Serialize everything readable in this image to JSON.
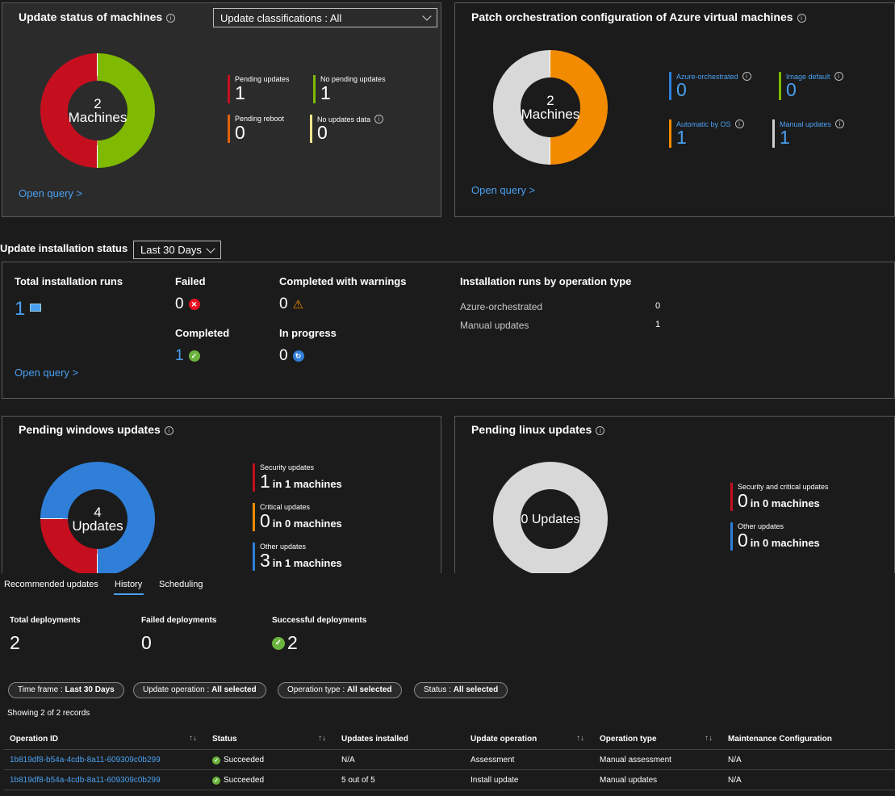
{
  "update_status": {
    "title": "Update status of machines",
    "dropdown": "Update classifications : All",
    "donut_value": "2",
    "donut_unit": "Machines",
    "legend": [
      {
        "label": "Pending updates",
        "value": "1",
        "color": "#c50f1f"
      },
      {
        "label": "No pending updates",
        "value": "1",
        "color": "#7fba00"
      },
      {
        "label": "Pending reboot",
        "value": "0",
        "color": "#e0620d"
      },
      {
        "label": "No updates data",
        "value": "0",
        "color": "#f0e68c"
      }
    ],
    "open_query": "Open query >"
  },
  "patch_orchestration": {
    "title": "Patch orchestration configuration of Azure virtual machines",
    "donut_value": "2",
    "donut_unit": "Machines",
    "legend": [
      {
        "label": "Azure-orchestrated",
        "value": "0",
        "color": "#2f7fd8"
      },
      {
        "label": "Image default",
        "value": "0",
        "color": "#7fba00"
      },
      {
        "label": "Automatic by OS",
        "value": "1",
        "color": "#f28b00"
      },
      {
        "label": "Manual updates",
        "value": "1",
        "color": "#d0d0d0"
      }
    ],
    "open_query": "Open query >"
  },
  "installation": {
    "title": "Update installation status",
    "timeframe": "Last 30 Days",
    "total_runs_label": "Total installation runs",
    "total_runs_value": "1",
    "failed_label": "Failed",
    "failed_value": "0",
    "completed_label": "Completed",
    "completed_value": "1",
    "warnings_label": "Completed with warnings",
    "warnings_value": "0",
    "in_progress_label": "In progress",
    "in_progress_value": "0",
    "by_type_title": "Installation runs by operation type",
    "by_type": [
      {
        "label": "Azure-orchestrated",
        "value": "0"
      },
      {
        "label": "Manual updates",
        "value": "1"
      }
    ],
    "open_query": "Open query >"
  },
  "windows_updates": {
    "title": "Pending windows updates",
    "donut_value": "4",
    "donut_unit": "Updates",
    "legend": [
      {
        "label": "Security updates",
        "value": "1",
        "suffix": "in 1 machines",
        "color": "#c50f1f"
      },
      {
        "label": "Critical updates",
        "value": "0",
        "suffix": "in 0 machines",
        "color": "#f28b00"
      },
      {
        "label": "Other updates",
        "value": "3",
        "suffix": "in 1 machines",
        "color": "#2f7fd8"
      }
    ]
  },
  "linux_updates": {
    "title": "Pending linux updates",
    "donut_label": "0 Updates",
    "legend": [
      {
        "label": "Security and critical updates",
        "value": "0",
        "suffix": "in 0 machines",
        "color": "#c50f1f"
      },
      {
        "label": "Other updates",
        "value": "0",
        "suffix": "in 0 machines",
        "color": "#2f7fd8"
      }
    ]
  },
  "tabs": [
    "Recommended updates",
    "History",
    "Scheduling"
  ],
  "active_tab": "History",
  "deployments": {
    "total_label": "Total deployments",
    "total_value": "2",
    "failed_label": "Failed deployments",
    "failed_value": "0",
    "success_label": "Successful deployments",
    "success_value": "2"
  },
  "filters": [
    {
      "key": "Time frame : ",
      "value": "Last 30 Days"
    },
    {
      "key": "Update operation : ",
      "value": "All selected"
    },
    {
      "key": "Operation type : ",
      "value": "All selected"
    },
    {
      "key": "Status : ",
      "value": "All selected"
    }
  ],
  "records_text": "Showing 2 of 2 records",
  "table": {
    "headers": [
      "Operation ID",
      "Status",
      "Updates installed",
      "Update operation",
      "Operation type",
      "Maintenance Configuration"
    ],
    "rows": [
      [
        "1b819df8-b54a-4cdb-8a11-609309c0b299",
        "Succeeded",
        "N/A",
        "Assessment",
        "Manual assessment",
        "N/A"
      ],
      [
        "1b819df8-b54a-4cdb-8a11-609309c0b299",
        "Succeeded",
        "5 out of 5",
        "Install update",
        "Manual updates",
        "N/A"
      ]
    ]
  },
  "colors": {
    "accent": "#4aa0f0",
    "success": "#6cb33e",
    "error": "#e81123",
    "warning": "#f28b00"
  }
}
